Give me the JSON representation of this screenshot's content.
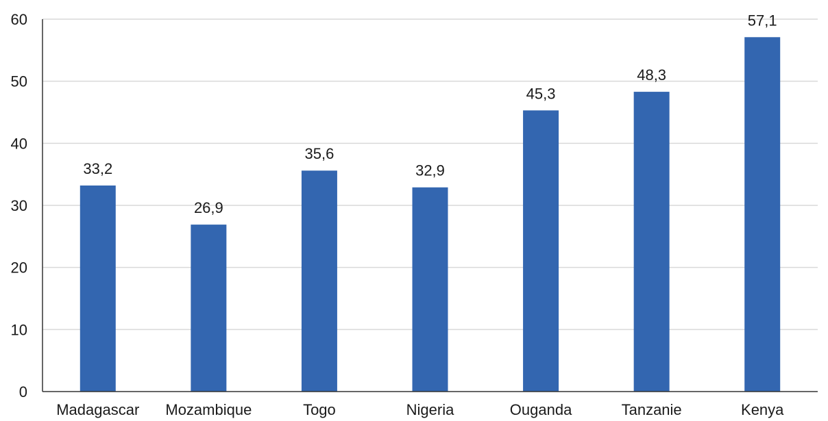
{
  "chart_data": {
    "type": "bar",
    "categories": [
      "Madagascar",
      "Mozambique",
      "Togo",
      "Nigeria",
      "Ouganda",
      "Tanzanie",
      "Kenya"
    ],
    "values": [
      33.2,
      26.9,
      35.6,
      32.9,
      45.3,
      48.3,
      57.1
    ],
    "value_labels": [
      "33,2",
      "26,9",
      "35,6",
      "32,9",
      "45,3",
      "48,3",
      "57,1"
    ],
    "title": "",
    "xlabel": "",
    "ylabel": "",
    "ylim": [
      0,
      60
    ],
    "yticks": [
      0,
      10,
      20,
      30,
      40,
      50,
      60
    ],
    "grid": true,
    "legend": "none",
    "colors": {
      "bar": "#3366b0",
      "grid": "#d9d9d9",
      "axis": "#333333",
      "text": "#1a1a1a"
    }
  }
}
